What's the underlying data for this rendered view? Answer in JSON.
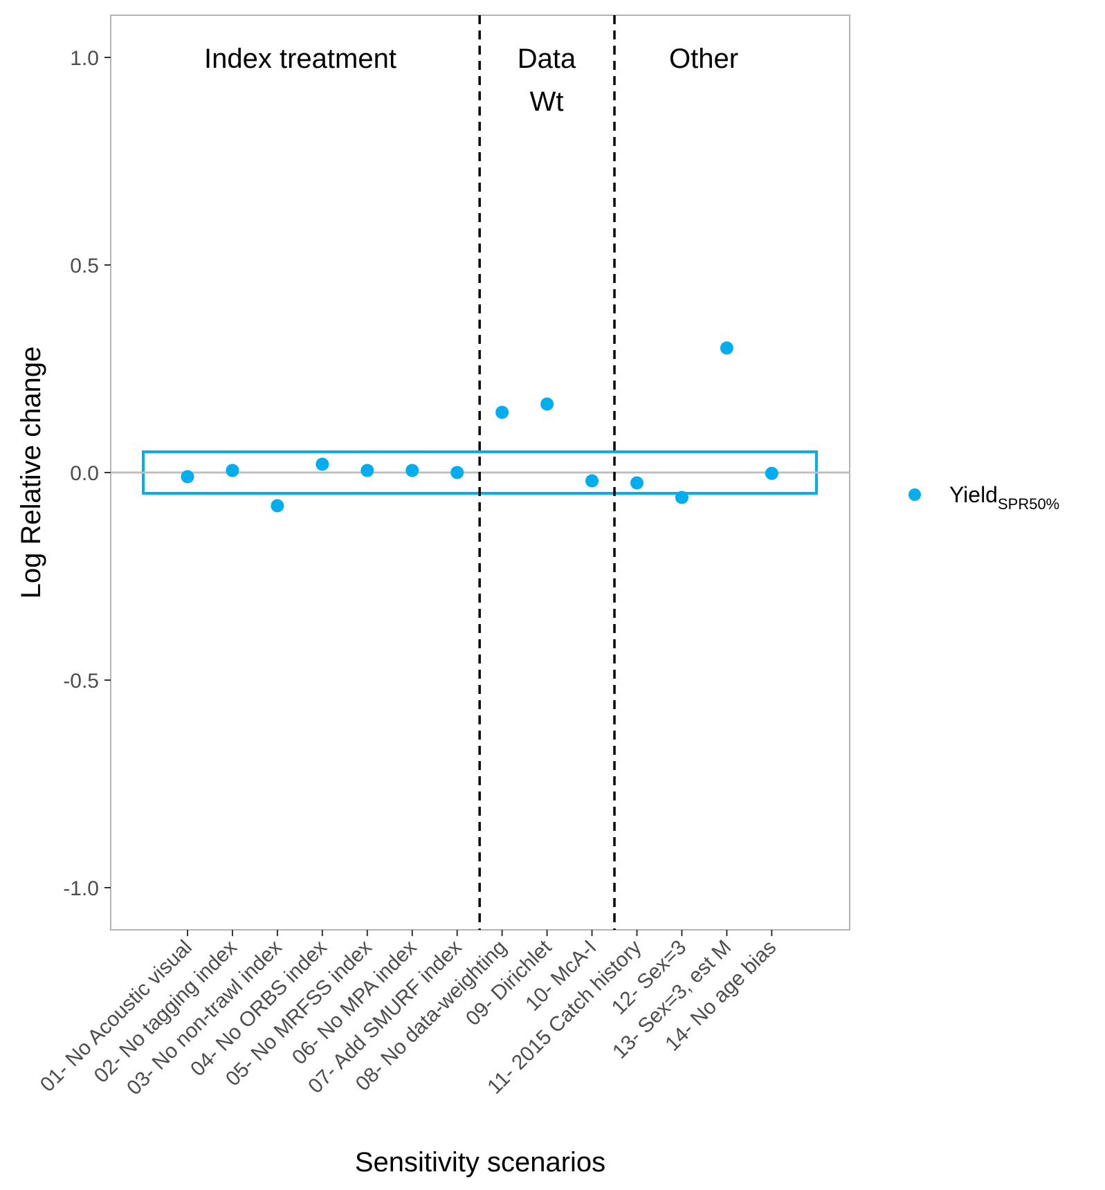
{
  "chart_data": {
    "type": "scatter",
    "xlabel": "Sensitivity scenarios",
    "ylabel": "Log Relative change",
    "ylim": [
      -1.1,
      1.1
    ],
    "yticks": [
      "1.0",
      "0.5",
      "0.0",
      "-0.5",
      "-1.0"
    ],
    "ytick_values": [
      1.0,
      0.5,
      0.0,
      -0.5,
      -1.0
    ],
    "grid": false,
    "legend_position": "right",
    "categories": [
      "01- No Acoustic visual",
      "02- No tagging index",
      "03- No non-trawl index",
      "04- No ORBS index",
      "05- No MRFSS index",
      "06- No MPA index",
      "07- Add SMURF index",
      "08- No data-weighting",
      "09- Dirichlet",
      "10- McA-I",
      "11- 2015 Catch history",
      "12- Sex=3",
      "13- Sex=3, est M",
      "14- No age bias"
    ],
    "series": [
      {
        "name": "Yield",
        "name_subscript": "SPR50%",
        "color": "#00AEEF",
        "values": [
          -0.01,
          0.005,
          -0.08,
          0.02,
          0.005,
          0.005,
          0.0,
          0.145,
          0.165,
          -0.02,
          -0.025,
          -0.06,
          0.3,
          -0.002
        ]
      }
    ],
    "reference_line": {
      "y": 0.0,
      "color": "#bfbfbf"
    },
    "band": {
      "ymin": -0.05,
      "ymax": 0.05,
      "color": "#00AEEF"
    },
    "group_dividers": [
      7.5,
      10.5
    ],
    "group_labels": [
      {
        "lines": [
          "Index treatment"
        ]
      },
      {
        "lines": [
          "Data",
          "Wt"
        ]
      },
      {
        "lines": [
          "Other"
        ]
      }
    ]
  }
}
